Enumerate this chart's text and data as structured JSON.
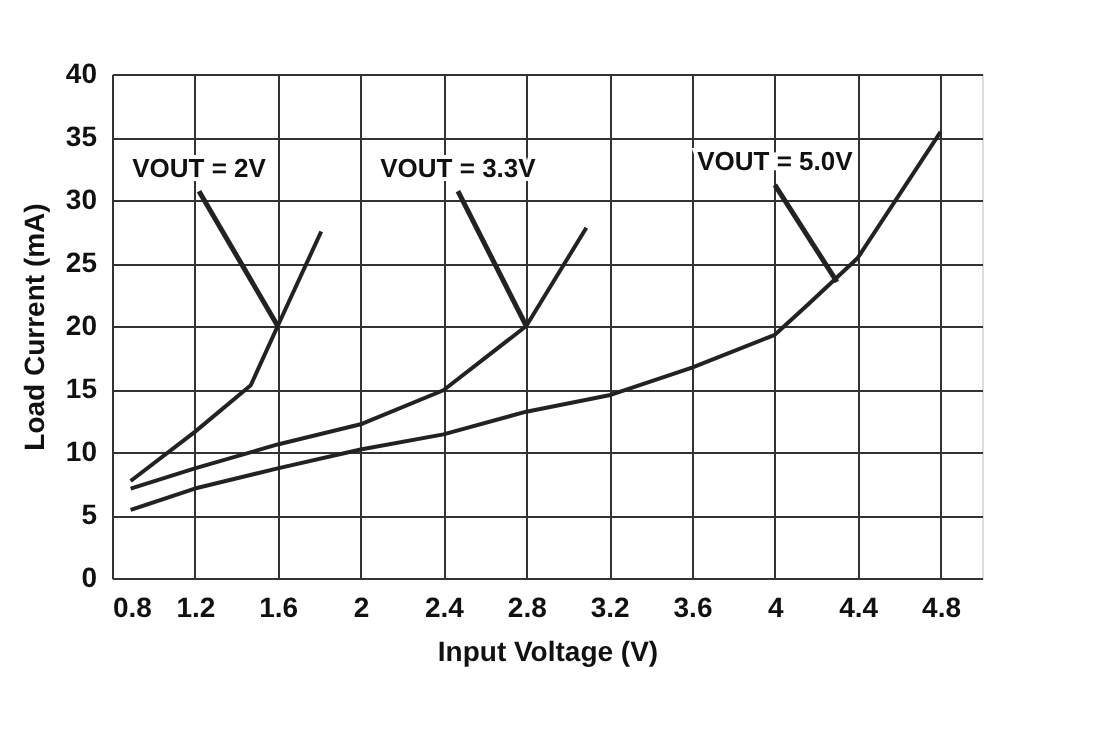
{
  "chart_data": {
    "type": "line",
    "xlabel": "Input Voltage (V)",
    "ylabel": "Load Current (mA)",
    "xlim": [
      0.8,
      5.0
    ],
    "xticks": [
      0.8,
      1.2,
      1.6,
      2,
      2.4,
      2.8,
      3.2,
      3.6,
      4,
      4.4,
      4.8
    ],
    "ylim": [
      0,
      40
    ],
    "yticks": [
      0,
      5,
      10,
      15,
      20,
      25,
      30,
      35,
      40
    ],
    "grid": true,
    "marker": "none",
    "line_style": "solid",
    "series": [
      {
        "color": "#222222",
        "x": [
          0.89,
          1.2,
          1.47,
          1.6,
          1.81
        ],
        "values": [
          7.7,
          11.6,
          15.3,
          20,
          27.5
        ]
      },
      {
        "color": "#222222",
        "x": [
          0.89,
          1.2,
          1.6,
          2.0,
          2.4,
          2.8,
          3.09
        ],
        "values": [
          7.1,
          8.7,
          10.6,
          12.2,
          14.9,
          20,
          27.8
        ]
      },
      {
        "color": "#222222",
        "x": [
          0.89,
          1.2,
          1.6,
          2.0,
          2.4,
          2.8,
          3.2,
          3.6,
          4.0,
          4.16,
          4.4,
          4.8
        ],
        "values": [
          5.4,
          7.1,
          8.7,
          10.2,
          11.4,
          13.2,
          14.5,
          16.7,
          19.3,
          21.7,
          25.4,
          35.4
        ]
      }
    ],
    "annotations": [
      {
        "text": "VOUT = 2V",
        "x": 1.6,
        "y": 20
      },
      {
        "text": "VOUT = 3.3V",
        "x": 2.8,
        "y": 20
      },
      {
        "text": "VOUT = 5.0V",
        "x": 4.3,
        "y": 23.5
      }
    ]
  }
}
